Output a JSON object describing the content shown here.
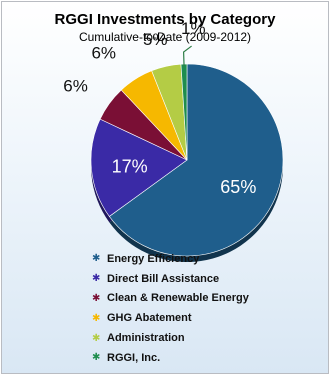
{
  "chart_data": {
    "type": "pie",
    "title": "RGGI Investments  by Category",
    "subtitle": "Cumulative-to-Date (2009-2012)",
    "legend_position": "bottom",
    "slices": [
      {
        "label": "Energy Efficiency",
        "value": 65,
        "value_label": "65%",
        "color": "#1f5e8c"
      },
      {
        "label": "Direct Bill Assistance",
        "value": 17,
        "value_label": "17%",
        "color": "#3a2aa6"
      },
      {
        "label": "Clean & Renewable Energy",
        "value": 6,
        "value_label": "6%",
        "color": "#7a0f35"
      },
      {
        "label": "GHG Abatement",
        "value": 6,
        "value_label": "6%",
        "color": "#f6b800"
      },
      {
        "label": "Administration",
        "value": 5,
        "value_label": "5%",
        "color": "#b4cc45"
      },
      {
        "label": "RGGI, Inc.",
        "value": 1,
        "value_label": "1%",
        "color": "#1e8d4e"
      }
    ]
  }
}
